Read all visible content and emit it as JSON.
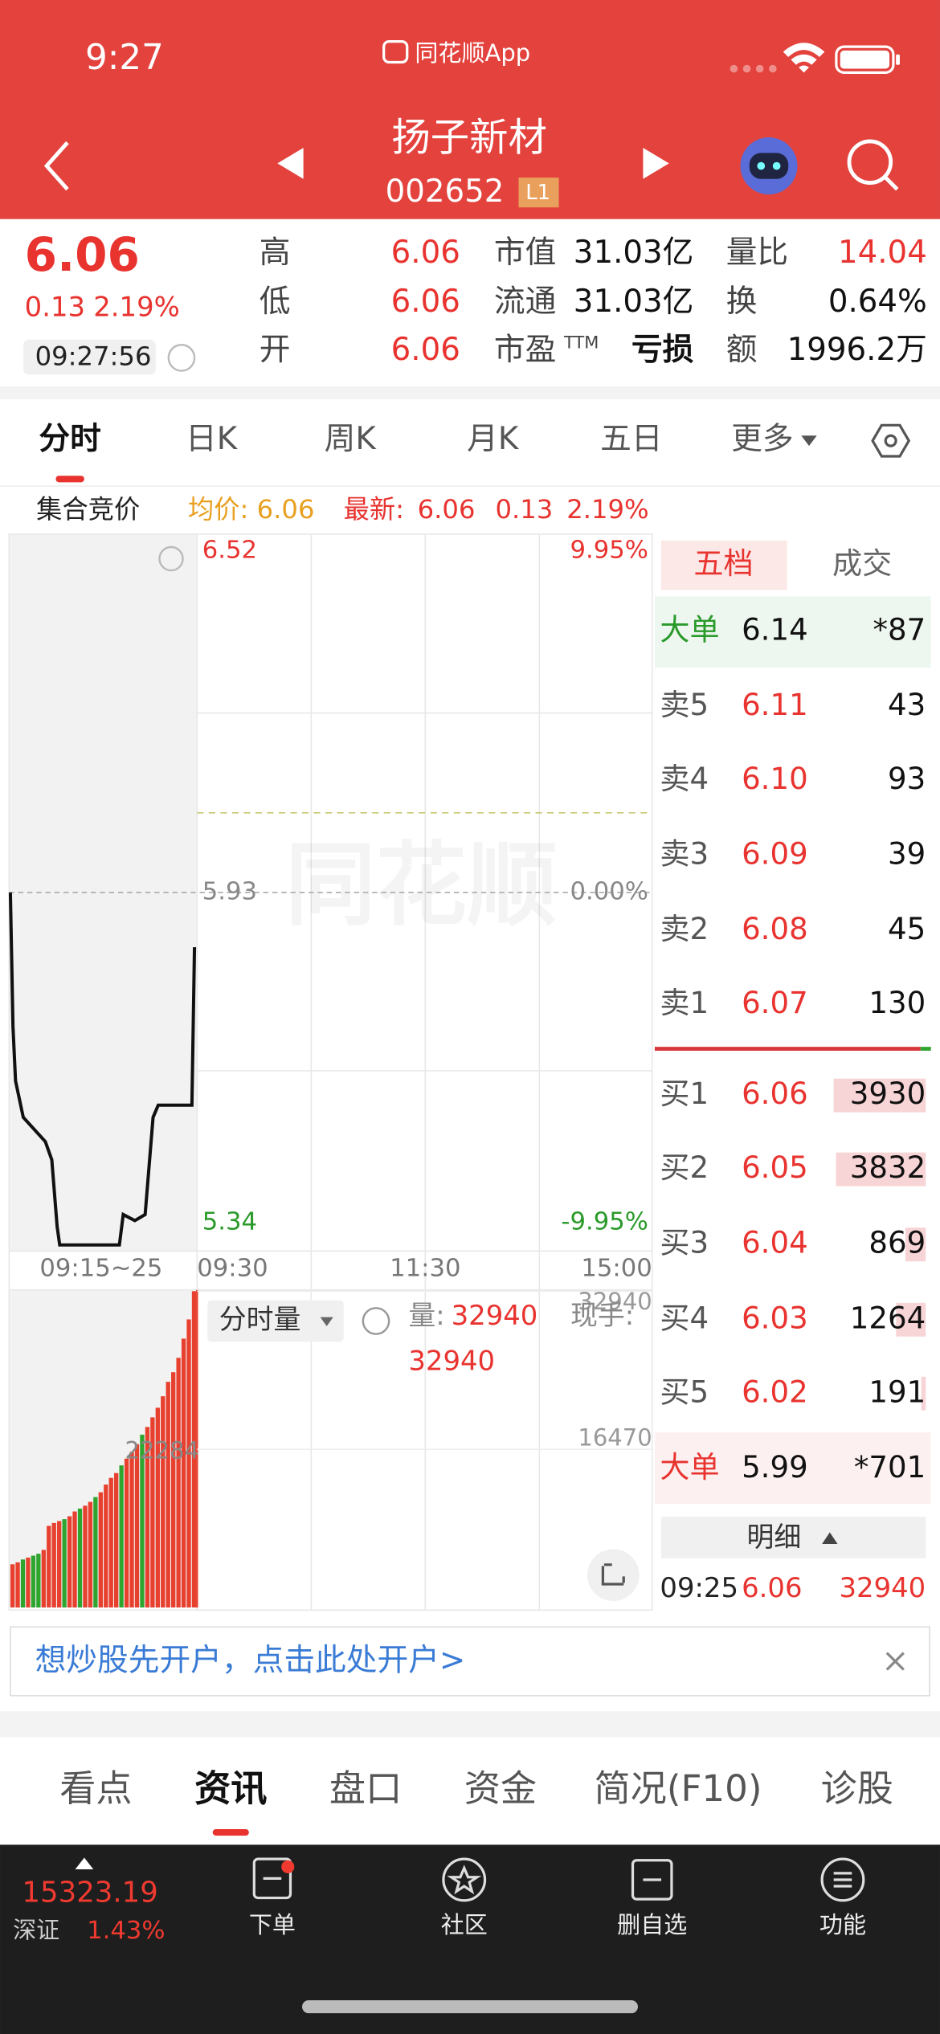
{
  "status_bar": {
    "time": "9:27",
    "app": "同花顺App"
  },
  "header": {
    "name": "扬子新材",
    "code": "002652",
    "level": "L1"
  },
  "quote": {
    "price": "6.06",
    "change": "0.13",
    "change_pct": "2.19%",
    "time": "09:27:56",
    "stats": [
      {
        "label": "高",
        "value": "6.06"
      },
      {
        "label": "低",
        "value": "6.06"
      },
      {
        "label": "开",
        "value": "6.06"
      },
      {
        "label": "市值",
        "value": "31.03亿"
      },
      {
        "label": "流通",
        "value": "31.03亿"
      },
      {
        "label": "市盈",
        "sup": "TTM",
        "value": "亏损"
      },
      {
        "label": "量比",
        "value": "14.04"
      },
      {
        "label": "换",
        "value": "0.64%"
      },
      {
        "label": "额",
        "value": "1996.2万"
      }
    ]
  },
  "tabs": {
    "items": [
      "分时",
      "日K",
      "周K",
      "月K",
      "五日",
      "更多"
    ],
    "active": 0
  },
  "info_line": {
    "label": "集合竞价",
    "avg": "均价: 6.06",
    "latest": "最新:",
    "latest_price": "6.06",
    "latest_change": "0.13",
    "latest_pct": "2.19%"
  },
  "watermark": "同花顺",
  "chart_data": [
    {
      "type": "line",
      "x": [
        0,
        0.14,
        0.28,
        0.7,
        1.9,
        2.25,
        2.54,
        2.68,
        5.92,
        6.13,
        6.76,
        7.32,
        7.75,
        8.03,
        9.86,
        10
      ],
      "values": [
        5.93,
        5.71,
        5.62,
        5.56,
        5.52,
        5.49,
        5.38,
        5.35,
        5.35,
        5.4,
        5.39,
        5.4,
        5.56,
        5.58,
        5.58,
        5.84
      ],
      "color": "#111111",
      "xlim": [
        0,
        10
      ],
      "ylim": [
        5.34,
        6.52
      ],
      "yticks": [
        5.34,
        5.93,
        6.52
      ],
      "y2lim": [
        -9.95,
        9.95
      ],
      "y2ticks": [
        {
          "value": -9.95,
          "label": "-9.95%"
        },
        {
          "value": 0,
          "label": "0.00%"
        },
        {
          "value": 9.95,
          "label": "9.95%"
        }
      ],
      "time_labels": [
        "09:15~25",
        "09:30",
        "11:30",
        "15:00"
      ]
    },
    {
      "type": "bar",
      "selector": "分时量",
      "volume_label": "量:",
      "volume_value": "32940",
      "volume_value2": "32940",
      "current_label": "现手:",
      "marker_label": "22284",
      "ylim": [
        0,
        32940
      ],
      "yticks": [
        16470,
        32940
      ],
      "values": [
        4500,
        4700,
        5000,
        5200,
        5400,
        5600,
        6000,
        8500,
        8800,
        9000,
        9200,
        9500,
        10000,
        10300,
        10600,
        11000,
        11500,
        12000,
        12800,
        13500,
        14000,
        14800,
        15500,
        16200,
        17000,
        18000,
        18800,
        19800,
        20800,
        22000,
        23500,
        24500,
        26000,
        28000,
        30000,
        32940
      ],
      "colors": [
        "#e8402f",
        "#e8402f",
        "#2fa52f",
        "#e8402f",
        "#2fa52f",
        "#2fa52f",
        "#e8402f",
        "#e8402f",
        "#e8402f",
        "#e8402f",
        "#2fa52f",
        "#e8402f",
        "#e8402f",
        "#2fa52f",
        "#e8402f",
        "#e8402f",
        "#2fa52f",
        "#e8402f",
        "#e8402f",
        "#e8402f",
        "#e8402f",
        "#2fa52f",
        "#e8402f",
        "#e8402f",
        "#e8402f",
        "#2fa52f",
        "#e8402f",
        "#e8402f",
        "#e8402f",
        "#e8402f",
        "#e8402f",
        "#e8402f",
        "#e8402f",
        "#e8402f",
        "#e8402f",
        "#e8402f"
      ]
    }
  ],
  "order_book": {
    "tabs": [
      "五档",
      "成交"
    ],
    "rows": [
      {
        "label": "大单",
        "price": "6.14",
        "qty": "*87"
      },
      {
        "label": "卖5",
        "price": "6.11",
        "qty": 43
      },
      {
        "label": "卖4",
        "price": "6.10",
        "qty": 93
      },
      {
        "label": "卖3",
        "price": "6.09",
        "qty": 39
      },
      {
        "label": "卖2",
        "price": "6.08",
        "qty": 45
      },
      {
        "label": "卖1",
        "price": "6.07",
        "qty": 130
      },
      {
        "label": "买1",
        "price": "6.06",
        "qty": 3930
      },
      {
        "label": "买2",
        "price": "6.05",
        "qty": 3832
      },
      {
        "label": "买3",
        "price": "6.04",
        "qty": 869
      },
      {
        "label": "买4",
        "price": "6.03",
        "qty": 1264
      },
      {
        "label": "买5",
        "price": "6.02",
        "qty": 191
      },
      {
        "label": "大单",
        "price": "5.99",
        "qty": "*701"
      }
    ]
  },
  "detail": {
    "label": "明细",
    "time": "09:25",
    "price": "6.06",
    "qty": "32940"
  },
  "banner": "想炒股先开户，点击此处开户>",
  "bottom_tabs": {
    "items": [
      "看点",
      "资讯",
      "盘口",
      "资金",
      "简况(F10)",
      "诊股"
    ],
    "active": 1
  },
  "tab_bar": {
    "index_value": "15323.19",
    "index_name": "深证",
    "index_pct": "1.43%",
    "items": [
      "下单",
      "社区",
      "删自选",
      "功能"
    ]
  }
}
